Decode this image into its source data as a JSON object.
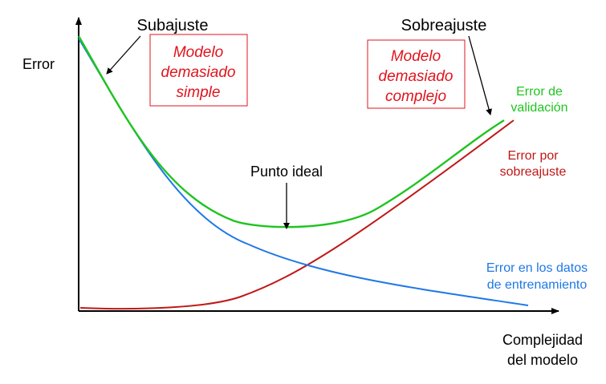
{
  "labels": {
    "y_axis": "Error",
    "x_axis": [
      "Complejidad",
      "del modelo"
    ],
    "underfit": "Subajuste",
    "overfit": "Sobreajuste",
    "ideal_point": "Punto ideal",
    "simple_box": [
      "Modelo",
      "demasiado",
      "simple"
    ],
    "complex_box": [
      "Modelo",
      "demasiado",
      "complejo"
    ],
    "validation": [
      "Error de",
      "validación"
    ],
    "overfit_error": [
      "Error por",
      "sobreajuste"
    ],
    "training": [
      "Error en los datos",
      "de entrenamiento"
    ]
  },
  "colors": {
    "axis": "#000000",
    "validation": "#1fc41f",
    "overfit_error": "#c01818",
    "training": "#1e78e6",
    "box_text": "#e0141c",
    "box_border": "#e0141c",
    "label": "#000000"
  },
  "curves": [
    {
      "name": "Error de validación",
      "color_key": "validation"
    },
    {
      "name": "Error por sobreajuste",
      "color_key": "overfit_error"
    },
    {
      "name": "Error en los datos de entrenamiento",
      "color_key": "training"
    }
  ]
}
